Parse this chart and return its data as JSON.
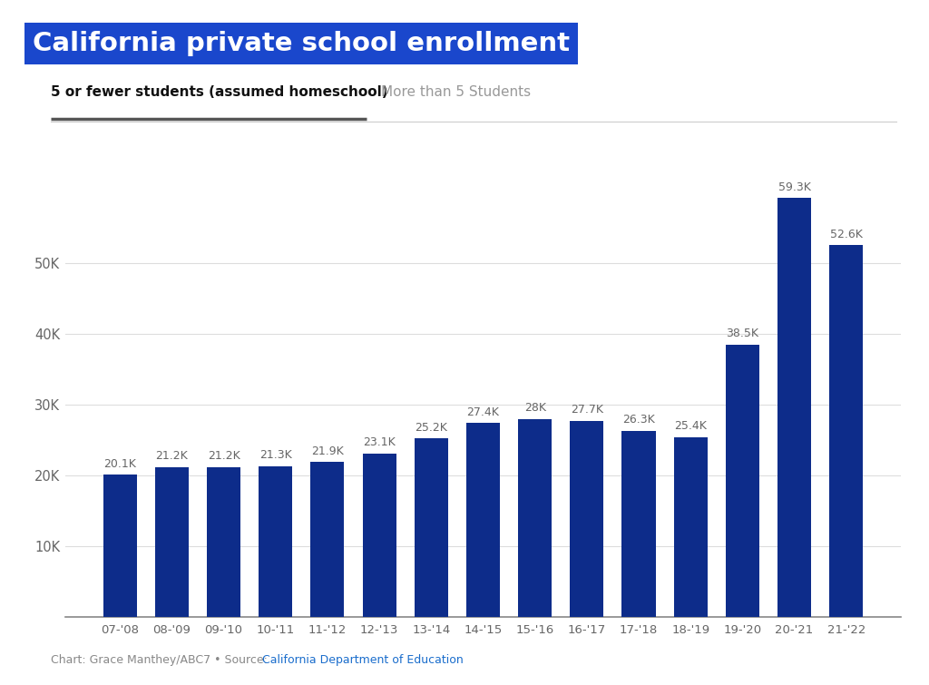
{
  "title": "California private school enrollment",
  "tab_active": "5 or fewer students (assumed homeschool)",
  "tab_inactive": "More than 5 Students",
  "categories": [
    "07-'08",
    "08-'09",
    "09-'10",
    "10-'11",
    "11-'12",
    "12-'13",
    "13-'14",
    "14-'15",
    "15-'16",
    "16-'17",
    "17-'18",
    "18-'19",
    "19-'20",
    "20-'21",
    "21-'22"
  ],
  "values": [
    20100,
    21200,
    21200,
    21300,
    21900,
    23100,
    25200,
    27400,
    28000,
    27700,
    26300,
    25400,
    38500,
    59300,
    52600
  ],
  "labels": [
    "20.1K",
    "21.2K",
    "21.2K",
    "21.3K",
    "21.9K",
    "23.1K",
    "25.2K",
    "27.4K",
    "28K",
    "27.7K",
    "26.3K",
    "25.4K",
    "38.5K",
    "59.3K",
    "52.6K"
  ],
  "bar_color": "#0d2c8a",
  "background_color": "#ffffff",
  "title_color": "#ffffff",
  "title_bg_color": "#1a47cc",
  "tab_active_color": "#111111",
  "tab_inactive_color": "#999999",
  "label_color": "#666666",
  "ylabel_ticks": [
    "10K",
    "20K",
    "30K",
    "40K",
    "50K"
  ],
  "ytick_values": [
    10000,
    20000,
    30000,
    40000,
    50000
  ],
  "ylim": [
    0,
    65000
  ],
  "footer_text_left": "Chart: Grace Manthey/ABC7 • Source: ",
  "footer_source": "California Department of Education",
  "footer_source_color": "#1a6dcc",
  "grid_color": "#dddddd",
  "bottom_axis_color": "#888888",
  "underline_color": "#555555",
  "sep_line_color": "#cccccc"
}
